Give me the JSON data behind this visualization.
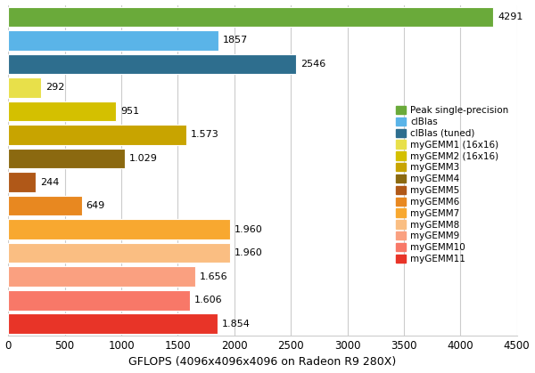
{
  "categories": [
    "myGEMM11",
    "myGEMM10",
    "myGEMM9",
    "myGEMM8",
    "myGEMM7",
    "myGEMM6",
    "myGEMM5",
    "myGEMM4",
    "myGEMM3",
    "myGEMM2 (16x16)",
    "myGEMM1 (16x16)",
    "clBlas (tuned)",
    "clBlas",
    "Peak single-precision"
  ],
  "values": [
    1854,
    1606,
    1656,
    1960,
    1960,
    649,
    244,
    1029,
    1573,
    951,
    292,
    2546,
    1857,
    4291
  ],
  "labels": [
    "1.854",
    "1.606",
    "1.656",
    "1.960",
    "1.960",
    "649",
    "244",
    "1.029",
    "1.573",
    "951",
    "292",
    "2546",
    "1857",
    "4291"
  ],
  "colors": [
    "#e83428",
    "#f87868",
    "#faa080",
    "#fabe82",
    "#f8a830",
    "#e88820",
    "#b05818",
    "#8b6910",
    "#c8a400",
    "#d4c000",
    "#e8e04a",
    "#2e6e8e",
    "#5ab4e8",
    "#6aaa3a"
  ],
  "xlabel": "GFLOPS (4096x4096x4096 on Radeon R9 280X)",
  "xlim": [
    0,
    4500
  ],
  "xticks": [
    0,
    500,
    1000,
    1500,
    2000,
    2500,
    3000,
    3500,
    4000,
    4500
  ],
  "legend_labels": [
    "Peak single-precision",
    "clBlas",
    "clBlas (tuned)",
    "myGEMM1 (16x16)",
    "myGEMM2 (16x16)",
    "myGEMM3",
    "myGEMM4",
    "myGEMM5",
    "myGEMM6",
    "myGEMM7",
    "myGEMM8",
    "myGEMM9",
    "myGEMM10",
    "myGEMM11"
  ],
  "legend_colors": [
    "#6aaa3a",
    "#5ab4e8",
    "#2e6e8e",
    "#e8e04a",
    "#d4c000",
    "#c8a400",
    "#8b6910",
    "#b05818",
    "#e88820",
    "#f8a830",
    "#fabe82",
    "#faa080",
    "#f87868",
    "#e83428"
  ],
  "background_color": "#ffffff"
}
